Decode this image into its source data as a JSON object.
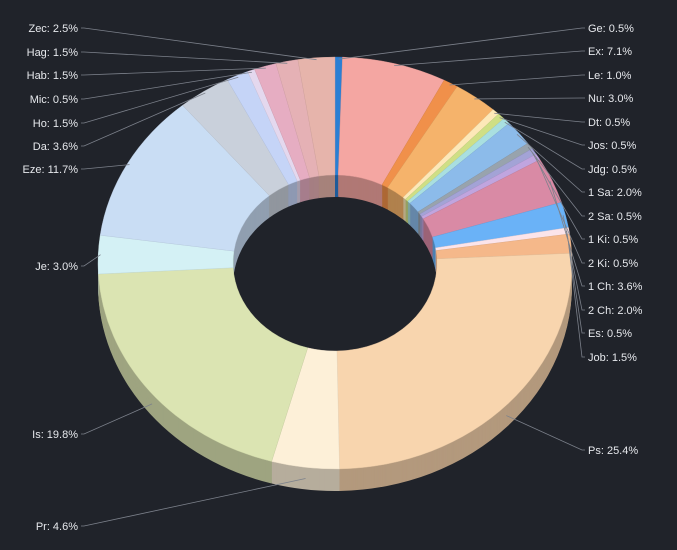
{
  "chart_data": {
    "type": "pie",
    "variant": "3d-donut",
    "title": "",
    "unit": "%",
    "slices": [
      {
        "name": "Ge",
        "value": 0.5,
        "color": "#2a7fd4"
      },
      {
        "name": "Ex",
        "value": 7.1,
        "color": "#f4a6a2"
      },
      {
        "name": "Le",
        "value": 1.0,
        "color": "#f0904a"
      },
      {
        "name": "Nu",
        "value": 3.0,
        "color": "#f5b36b"
      },
      {
        "name": "Dt",
        "value": 0.5,
        "color": "#fde8b8"
      },
      {
        "name": "Jos",
        "value": 0.5,
        "color": "#cfdf85"
      },
      {
        "name": "Jdg",
        "value": 0.5,
        "color": "#a9dfe0"
      },
      {
        "name": "1 Sa",
        "value": 2.0,
        "color": "#8cbbea"
      },
      {
        "name": "2 Sa",
        "value": 0.5,
        "color": "#98a3ad"
      },
      {
        "name": "1 Ki",
        "value": 0.5,
        "color": "#a3a3d6"
      },
      {
        "name": "2 Ki",
        "value": 0.5,
        "color": "#c0a5df"
      },
      {
        "name": "1 Ch",
        "value": 3.6,
        "color": "#d98aa5"
      },
      {
        "name": "2 Ch",
        "value": 2.0,
        "color": "#6ab2f7"
      },
      {
        "name": "Es",
        "value": 0.5,
        "color": "#fbe4ea"
      },
      {
        "name": "Job",
        "value": 1.5,
        "color": "#f5b88a"
      },
      {
        "name": "Ps",
        "value": 25.4,
        "color": "#f8d5ae"
      },
      {
        "name": "Pr",
        "value": 4.6,
        "color": "#fdf0d8"
      },
      {
        "name": "Is",
        "value": 19.8,
        "color": "#dbe4b2"
      },
      {
        "name": "Je",
        "value": 3.0,
        "color": "#d4f1f5"
      },
      {
        "name": "Eze",
        "value": 11.7,
        "color": "#c9ddf4"
      },
      {
        "name": "Da",
        "value": 3.6,
        "color": "#c9d0db"
      },
      {
        "name": "Ho",
        "value": 1.5,
        "color": "#c5d4f7"
      },
      {
        "name": "Mic",
        "value": 0.5,
        "color": "#e4d8ee"
      },
      {
        "name": "Hab",
        "value": 1.5,
        "color": "#e6adc2"
      },
      {
        "name": "Hag",
        "value": 1.5,
        "color": "#e5b1b5"
      },
      {
        "name": "Zec",
        "value": 2.5,
        "color": "#e6b4ab"
      }
    ],
    "legend": "none",
    "data_labels": "outside-with-leader-lines"
  }
}
